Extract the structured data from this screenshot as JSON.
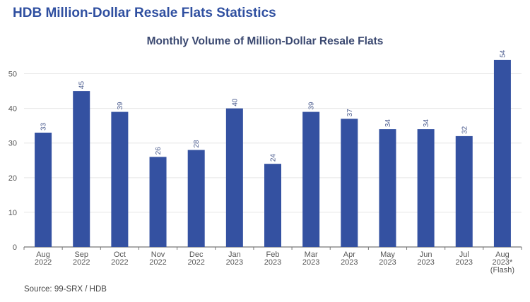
{
  "heading": "HDB Million-Dollar Resale Flats Statistics",
  "source": "Source: 99-SRX / HDB",
  "colors": {
    "bar": "#3451a1",
    "heading": "#2f4fa0",
    "grid": "#e6e6e6"
  },
  "chart_data": {
    "type": "bar",
    "title": "Monthly Volume of Million-Dollar Resale Flats",
    "xlabel": "",
    "ylabel": "",
    "ylim": [
      0,
      55
    ],
    "yticks": [
      0,
      10,
      20,
      30,
      40,
      50
    ],
    "grid": true,
    "categories": [
      [
        "Aug",
        "2022"
      ],
      [
        "Sep",
        "2022"
      ],
      [
        "Oct",
        "2022"
      ],
      [
        "Nov",
        "2022"
      ],
      [
        "Dec",
        "2022"
      ],
      [
        "Jan",
        "2023"
      ],
      [
        "Feb",
        "2023"
      ],
      [
        "Mar",
        "2023"
      ],
      [
        "Apr",
        "2023"
      ],
      [
        "May",
        "2023"
      ],
      [
        "Jun",
        "2023"
      ],
      [
        "Jul",
        "2023"
      ],
      [
        "Aug",
        "2023*",
        "(Flash)"
      ]
    ],
    "values": [
      33,
      45,
      39,
      26,
      28,
      40,
      24,
      39,
      37,
      34,
      34,
      32,
      54
    ]
  }
}
